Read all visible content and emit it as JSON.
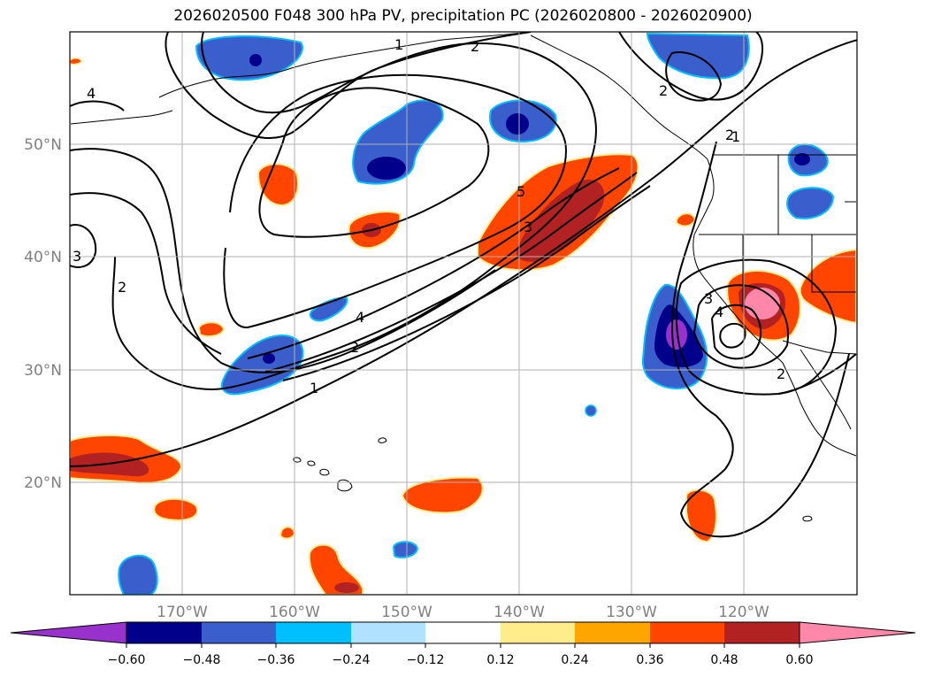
{
  "title": "2026020500 F048 300 hPa PV, precipitation PC (2026020800 - 2026020900)",
  "map": {
    "lon_range": [
      -180,
      -110
    ],
    "lat_range": [
      10,
      60
    ],
    "lon_ticks": [
      {
        "lon": -170,
        "label": "170°W"
      },
      {
        "lon": -160,
        "label": "160°W"
      },
      {
        "lon": -150,
        "label": "150°W"
      },
      {
        "lon": -140,
        "label": "140°W"
      },
      {
        "lon": -130,
        "label": "130°W"
      },
      {
        "lon": -120,
        "label": "120°W"
      }
    ],
    "lat_ticks": [
      {
        "lat": 20,
        "label": "20°N"
      },
      {
        "lat": 30,
        "label": "30°N"
      },
      {
        "lat": 40,
        "label": "40°N"
      },
      {
        "lat": 50,
        "label": "50°N"
      }
    ],
    "contour_labels": [
      "1",
      "2",
      "4",
      "2",
      "3",
      "2",
      "4",
      "2",
      "1",
      "5",
      "3",
      "2",
      "1",
      "3",
      "4",
      "2"
    ]
  },
  "colors": {
    "neg_extreme": "#9932cc",
    "neg_060": "#00008b",
    "neg_048": "#3a5fcd",
    "neg_036": "#00bfff",
    "neg_024": "#b0e2ff",
    "neutral": "#ffffff",
    "pos_012": "#ffec8b",
    "pos_024": "#ffa500",
    "pos_036": "#ff4500",
    "pos_048": "#b22222",
    "pos_extreme": "#ff88aa"
  },
  "colorbar": {
    "levels": [
      "−0.60",
      "−0.48",
      "−0.36",
      "−0.24",
      "−0.12",
      "0.12",
      "0.24",
      "0.36",
      "0.48",
      "0.60"
    ]
  }
}
